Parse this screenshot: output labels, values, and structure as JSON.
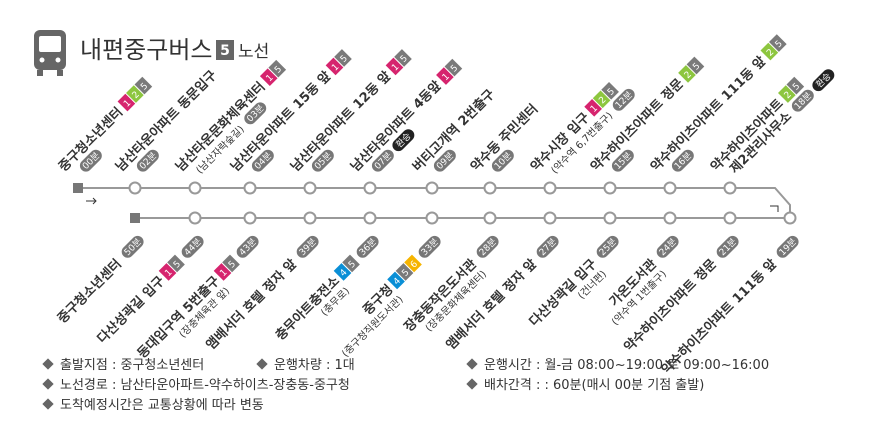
{
  "header": {
    "title": "내편중구버스",
    "route_number": "5",
    "route_label": "노선"
  },
  "top_stops": [
    {
      "name": "중구청소년센터",
      "time": "00분",
      "badges": [
        {
          "label": "1",
          "color": "#d6246e"
        },
        {
          "label": "2",
          "color": "#8dc63f"
        },
        {
          "label": "5",
          "color": "#7a7a7a"
        }
      ]
    },
    {
      "name": "남산타운아파트 동문입구",
      "time": "02분",
      "badges": []
    },
    {
      "name": "남산타운문화체육센터",
      "sub": "(남산자락숲길)",
      "time": "03분",
      "badges": [
        {
          "label": "1",
          "color": "#d6246e"
        },
        {
          "label": "5",
          "color": "#7a7a7a"
        }
      ]
    },
    {
      "name": "남산타운아파트 15동 앞",
      "time": "04분",
      "badges": [
        {
          "label": "1",
          "color": "#d6246e"
        },
        {
          "label": "5",
          "color": "#7a7a7a"
        }
      ]
    },
    {
      "name": "남산타운아파트 12동 앞",
      "time": "05분",
      "badges": [
        {
          "label": "1",
          "color": "#d6246e"
        },
        {
          "label": "5",
          "color": "#7a7a7a"
        }
      ]
    },
    {
      "name": "남산타운아파트 4동앞",
      "time": "07분",
      "extra": "환승",
      "badges": [
        {
          "label": "1",
          "color": "#d6246e"
        },
        {
          "label": "5",
          "color": "#7a7a7a"
        }
      ]
    },
    {
      "name": "버티고개역 2번출구",
      "time": "09분",
      "badges": []
    },
    {
      "name": "약수동 주민센터",
      "time": "10분",
      "badges": []
    },
    {
      "name": "약수시장 입구",
      "sub": "(약수역 6,7번출구)",
      "time": "12분",
      "badges": [
        {
          "label": "1",
          "color": "#d6246e"
        },
        {
          "label": "2",
          "color": "#8dc63f"
        },
        {
          "label": "5",
          "color": "#7a7a7a"
        }
      ]
    },
    {
      "name": "약수하이츠아파트 정문",
      "time": "15분",
      "badges": [
        {
          "label": "2",
          "color": "#8dc63f"
        },
        {
          "label": "5",
          "color": "#7a7a7a"
        }
      ]
    },
    {
      "name": "약수하이츠아파트 111동 앞",
      "time": "16분",
      "badges": [
        {
          "label": "2",
          "color": "#8dc63f"
        },
        {
          "label": "5",
          "color": "#7a7a7a"
        }
      ]
    },
    {
      "name": "약수하이츠아파트",
      "sub": "제2관리사무소",
      "time": "18분",
      "extra": "환승",
      "badges": [
        {
          "label": "2",
          "color": "#8dc63f"
        },
        {
          "label": "5",
          "color": "#7a7a7a"
        }
      ]
    }
  ],
  "bottom_stops": [
    {
      "name": "중구청소년센터",
      "time": "50분",
      "badges": []
    },
    {
      "name": "다산성곽길 입구",
      "time": "44분",
      "badges": [
        {
          "label": "1",
          "color": "#d6246e"
        },
        {
          "label": "5",
          "color": "#7a7a7a"
        }
      ]
    },
    {
      "name": "동대입구역 5번출구",
      "sub": "(장충체육관 앞)",
      "time": "43분",
      "badges": [
        {
          "label": "1",
          "color": "#d6246e"
        },
        {
          "label": "5",
          "color": "#7a7a7a"
        }
      ]
    },
    {
      "name": "앰배서더 호텔 정자 앞",
      "time": "39분",
      "badges": []
    },
    {
      "name": "충무아트충전소",
      "sub": "(충무로)",
      "time": "36분",
      "badges": [
        {
          "label": "4",
          "color": "#0a8fd6"
        },
        {
          "label": "5",
          "color": "#7a7a7a"
        }
      ]
    },
    {
      "name": "중구청",
      "sub": "(중구청직원도서관)",
      "time": "33분",
      "badges": [
        {
          "label": "4",
          "color": "#0a8fd6"
        },
        {
          "label": "5",
          "color": "#7a7a7a"
        },
        {
          "label": "6",
          "color": "#f6b400"
        }
      ]
    },
    {
      "name": "장충동작은도서관",
      "sub": "(장충문화체육센터)",
      "time": "28분",
      "badges": []
    },
    {
      "name": "앰배서더 호텔 정자 앞",
      "time": "27분",
      "badges": []
    },
    {
      "name": "다산성곽길 입구",
      "sub": "(건너편)",
      "time": "25분",
      "badges": []
    },
    {
      "name": "가온도서관",
      "sub": "(약수역 1번출구)",
      "time": "24분",
      "badges": []
    },
    {
      "name": "약수하이츠아파트 정문",
      "time": "21분",
      "badges": []
    },
    {
      "name": "약수하이츠아파트 111동 앞",
      "time": "19분",
      "badges": []
    }
  ],
  "info": {
    "left": [
      "출발지점 : 중구청소년센터",
      "노선경로 : 남산타운아파트-약수하이츠-장충동-중구청",
      "도착예정시간은 교통상황에 따라 변동"
    ],
    "vehicles": "운행차량 : 1대",
    "right": [
      "운행시간 : 월-금 08:00~19:00 토 09:00~16:00",
      "배차간격 : : 60분(매시 00분 기점 출발)"
    ]
  }
}
